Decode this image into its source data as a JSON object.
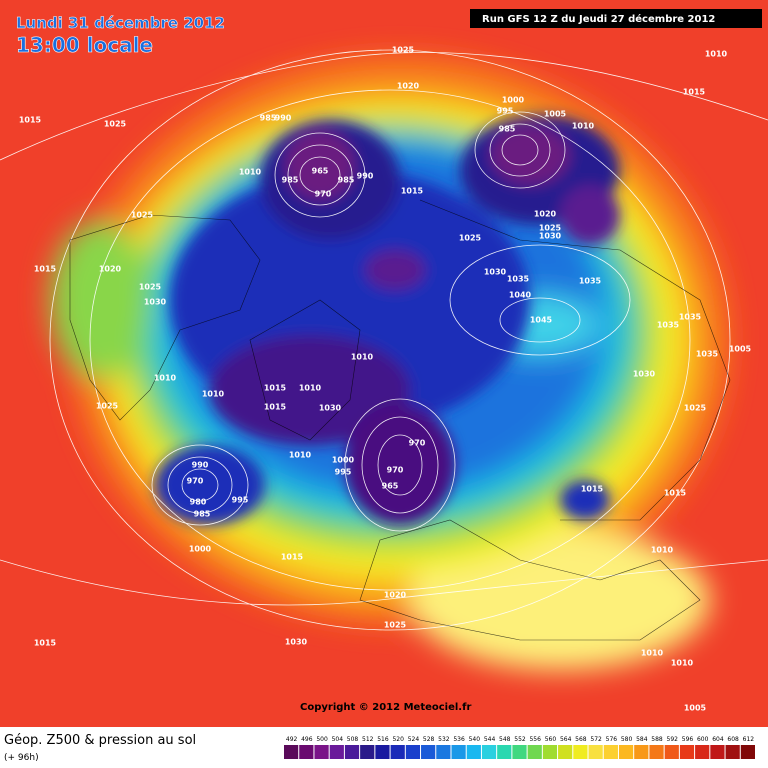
{
  "header": {
    "date": "Lundi 31 décembre 2012",
    "time": "13:00 locale",
    "run": "Run GFS 12 Z du Jeudi 27 décembre 2012"
  },
  "copyright": "Copyright © 2012 Meteociel.fr",
  "footer": {
    "title": "Géop. Z500 & pression au sol",
    "lead": "(+ 96h)"
  },
  "legend": {
    "values": [
      492,
      496,
      500,
      504,
      508,
      512,
      516,
      520,
      524,
      528,
      532,
      536,
      540,
      544,
      548,
      552,
      556,
      560,
      564,
      568,
      572,
      576,
      580,
      584,
      588,
      592,
      596,
      600,
      604,
      608,
      612
    ]
  },
  "pressure_labels": [
    1015,
    1025,
    1025,
    1020,
    1010,
    1015,
    1000,
    995,
    985,
    1005,
    1010,
    985,
    990,
    965,
    970,
    985,
    985,
    990,
    1010,
    1015,
    1025,
    1020,
    1025,
    1030,
    1030,
    1035,
    1040,
    1045,
    1035,
    1030,
    1035,
    1035,
    1035,
    1005,
    1025,
    1015,
    1015,
    1010,
    1010,
    1010,
    1005,
    970,
    965,
    970,
    1010,
    1030,
    1010,
    1015,
    1015,
    1010,
    1010,
    1025,
    1025,
    1020,
    1015,
    1025,
    1030,
    990,
    970,
    980,
    985,
    995,
    1000,
    1015,
    1020,
    1025,
    1030,
    1015,
    1010,
    1000,
    995
  ]
}
